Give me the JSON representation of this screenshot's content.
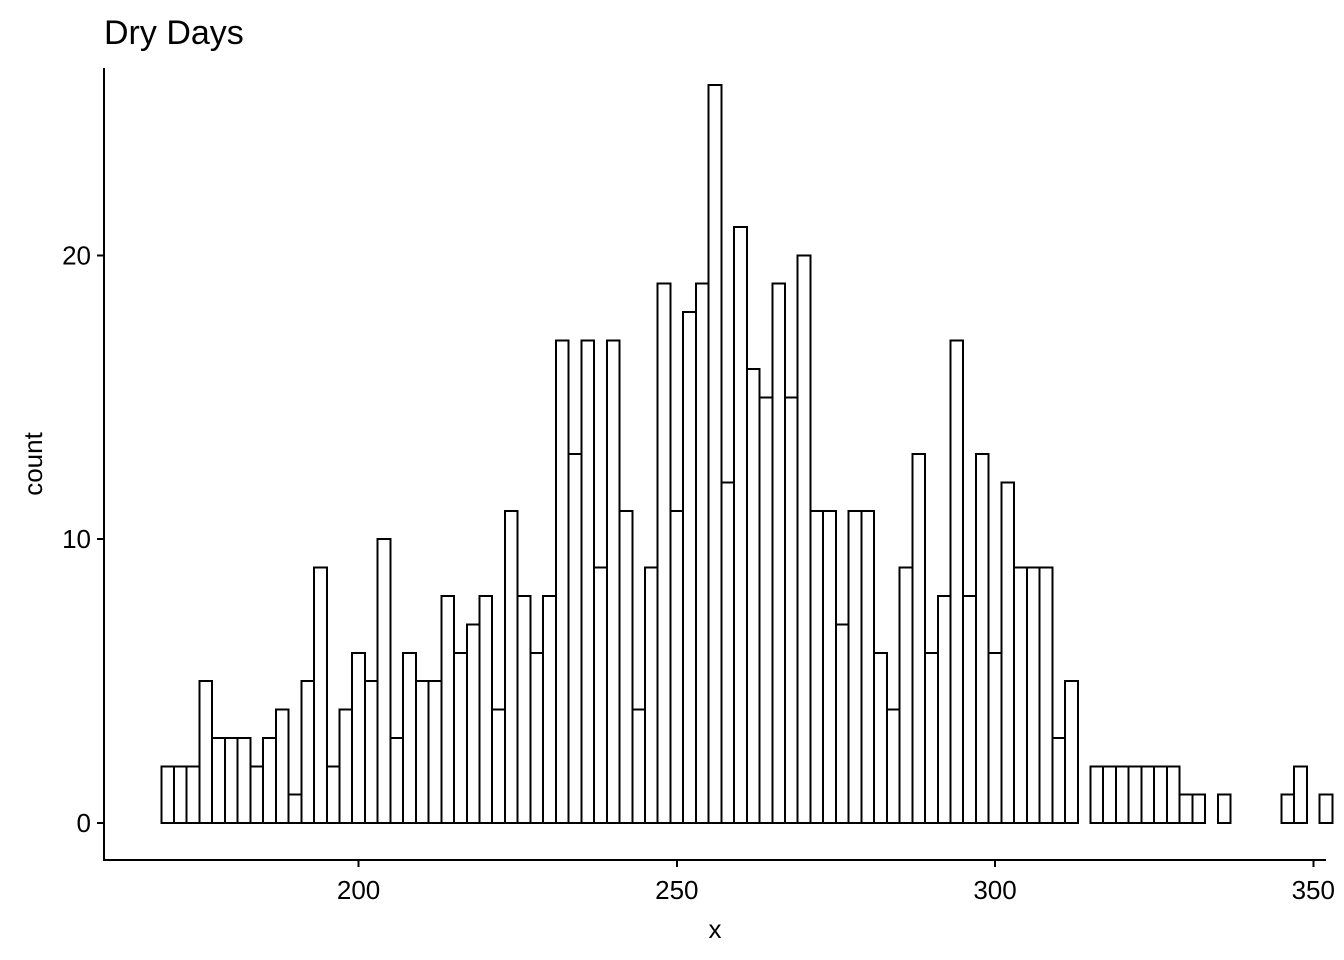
{
  "chart_data": {
    "type": "bar",
    "subtype": "histogram",
    "title": "Dry Days",
    "xlabel": "x",
    "ylabel": "count",
    "bin_start": 169,
    "bin_width": 2,
    "counts": [
      2,
      2,
      2,
      5,
      3,
      3,
      3,
      2,
      3,
      4,
      1,
      5,
      9,
      2,
      4,
      6,
      5,
      10,
      3,
      6,
      5,
      5,
      8,
      6,
      7,
      8,
      4,
      11,
      8,
      6,
      8,
      17,
      13,
      17,
      9,
      17,
      11,
      4,
      9,
      19,
      11,
      18,
      19,
      26,
      12,
      21,
      16,
      15,
      19,
      15,
      20,
      11,
      11,
      7,
      11,
      11,
      6,
      4,
      9,
      13,
      6,
      8,
      17,
      8,
      13,
      6,
      12,
      9,
      9,
      9,
      3,
      5,
      0,
      2,
      2,
      2,
      2,
      2,
      2,
      2,
      1,
      1,
      0,
      1,
      0,
      0,
      0,
      0,
      1,
      2,
      0,
      1
    ],
    "xlim": [
      160,
      352
    ],
    "ylim": [
      -1.3,
      26.6
    ],
    "xticks": [
      200,
      250,
      300,
      350
    ],
    "yticks": [
      0,
      10,
      20
    ],
    "grid": false,
    "legend": "none",
    "bar_fill": "#ffffff",
    "bar_stroke": "#000000"
  }
}
